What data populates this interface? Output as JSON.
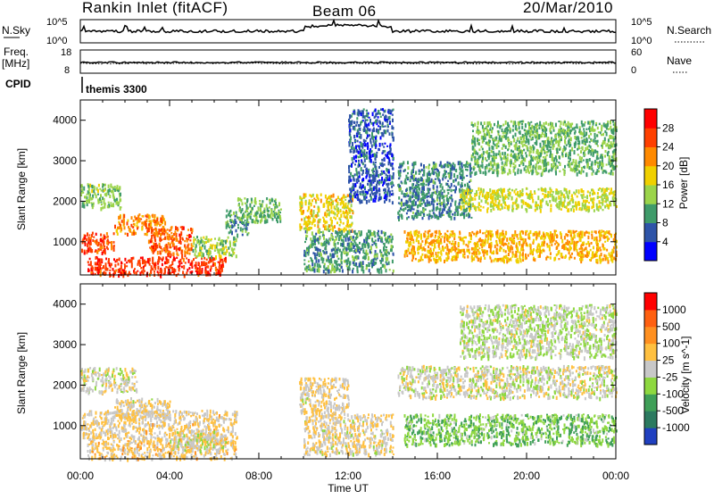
{
  "header": {
    "station": "Rankin Inlet (fitACF)",
    "beam": "Beam 06",
    "date": "20/Mar/2010"
  },
  "sky_panel": {
    "left_label": "N.Sky",
    "left_ticks": [
      "10^5",
      "10^0"
    ],
    "right_label": "N.Search",
    "right_ticks": [
      "10^5",
      "10^0"
    ]
  },
  "freq_panel": {
    "left_label_top": "Freq.",
    "left_label_bottom": "[MHz]",
    "left_ticks": [
      "18",
      "8"
    ],
    "right_label": "Nave",
    "right_ticks": [
      "60",
      "0"
    ]
  },
  "cpid_panel": {
    "label": "CPID",
    "value": "themis 3300"
  },
  "axes": {
    "ylabel": "Slant Range [km]",
    "xlabel": "Time UT",
    "yticks": [
      "4000",
      "3000",
      "2000",
      "1000"
    ],
    "xticks": [
      "00:00",
      "04:00",
      "08:00",
      "12:00",
      "16:00",
      "20:00",
      "00:00"
    ]
  },
  "colors": {
    "power_scale": [
      "#0000ff",
      "#2e54a8",
      "#3f9b6a",
      "#9bd44a",
      "#f0d000",
      "#ff8a00",
      "#ff4000",
      "#ff0000"
    ],
    "velocity_scale": [
      "#2040c0",
      "#2c7a60",
      "#3f9f58",
      "#8ed840",
      "#c8c8c8",
      "#ffc040",
      "#ff9020",
      "#ff6010",
      "#ff0000"
    ]
  },
  "chart_data": [
    {
      "type": "heatmap",
      "title": "",
      "xlabel": "Time UT",
      "ylabel": "Slant Range [km]",
      "xlim": [
        0,
        24
      ],
      "ylim": [
        180,
        4500
      ],
      "colorbar_label": "Power [dB]",
      "colorbar_ticks": [
        "28",
        "24",
        "20",
        "16",
        "12",
        "8",
        "4"
      ],
      "colorbar_range": [
        0,
        32
      ],
      "regions": [
        {
          "t": [
            0.0,
            1.5
          ],
          "r": [
            750,
            1250
          ],
          "v": 26
        },
        {
          "t": [
            0.0,
            1.8
          ],
          "r": [
            1850,
            2450
          ],
          "v": 13
        },
        {
          "t": [
            1.5,
            3.8
          ],
          "r": [
            1200,
            1700
          ],
          "v": 22
        },
        {
          "t": [
            3.0,
            5.0
          ],
          "r": [
            700,
            1400
          ],
          "v": 25
        },
        {
          "t": [
            0.3,
            6.5
          ],
          "r": [
            200,
            650
          ],
          "v": 27
        },
        {
          "t": [
            5.0,
            7.0
          ],
          "r": [
            650,
            1150
          ],
          "v": 14
        },
        {
          "t": [
            6.5,
            7.5
          ],
          "r": [
            1200,
            1800
          ],
          "v": 10
        },
        {
          "t": [
            7.0,
            9.0
          ],
          "r": [
            1500,
            2100
          ],
          "v": 12
        },
        {
          "t": [
            9.8,
            12.2
          ],
          "r": [
            1300,
            2200
          ],
          "v": 18
        },
        {
          "t": [
            10.0,
            14.0
          ],
          "r": [
            300,
            1300
          ],
          "v": 10
        },
        {
          "t": [
            12.0,
            14.0
          ],
          "r": [
            2000,
            4300
          ],
          "v": 6
        },
        {
          "t": [
            14.2,
            17.5
          ],
          "r": [
            1600,
            3000
          ],
          "v": 9
        },
        {
          "t": [
            14.5,
            24.0
          ],
          "r": [
            550,
            1300
          ],
          "v": 20
        },
        {
          "t": [
            17.0,
            24.0
          ],
          "r": [
            1800,
            2350
          ],
          "v": 16
        },
        {
          "t": [
            17.5,
            24.0
          ],
          "r": [
            2700,
            4000
          ],
          "v": 12
        }
      ]
    },
    {
      "type": "heatmap",
      "title": "",
      "xlabel": "Time UT",
      "ylabel": "Slant Range [km]",
      "xlim": [
        0,
        24
      ],
      "ylim": [
        180,
        4500
      ],
      "colorbar_label": "Velocity [m s^-1]",
      "colorbar_ticks": [
        "1000",
        "500",
        "100",
        "25",
        "-25",
        "-100",
        "-500",
        "-1000"
      ],
      "colorbar_range": [
        -1250,
        1250
      ],
      "regions": [
        {
          "t": [
            0.0,
            2.5
          ],
          "r": [
            1850,
            2450
          ],
          "v": 0
        },
        {
          "t": [
            0.0,
            7.0
          ],
          "r": [
            700,
            1400
          ],
          "v": 150
        },
        {
          "t": [
            1.5,
            4.0
          ],
          "r": [
            1200,
            1700
          ],
          "v": 120
        },
        {
          "t": [
            0.3,
            7.0
          ],
          "r": [
            200,
            700
          ],
          "v": 200
        },
        {
          "t": [
            4.0,
            6.5
          ],
          "r": [
            400,
            900
          ],
          "v": 0
        },
        {
          "t": [
            9.8,
            12.0
          ],
          "r": [
            1300,
            2200
          ],
          "v": 130
        },
        {
          "t": [
            10.0,
            14.0
          ],
          "r": [
            300,
            1300
          ],
          "v": 110
        },
        {
          "t": [
            14.5,
            24.0
          ],
          "r": [
            550,
            1300
          ],
          "v": -350
        },
        {
          "t": [
            14.2,
            24.0
          ],
          "r": [
            1700,
            2500
          ],
          "v": 0
        },
        {
          "t": [
            17.0,
            24.0
          ],
          "r": [
            2700,
            4000
          ],
          "v": -80
        }
      ]
    }
  ]
}
